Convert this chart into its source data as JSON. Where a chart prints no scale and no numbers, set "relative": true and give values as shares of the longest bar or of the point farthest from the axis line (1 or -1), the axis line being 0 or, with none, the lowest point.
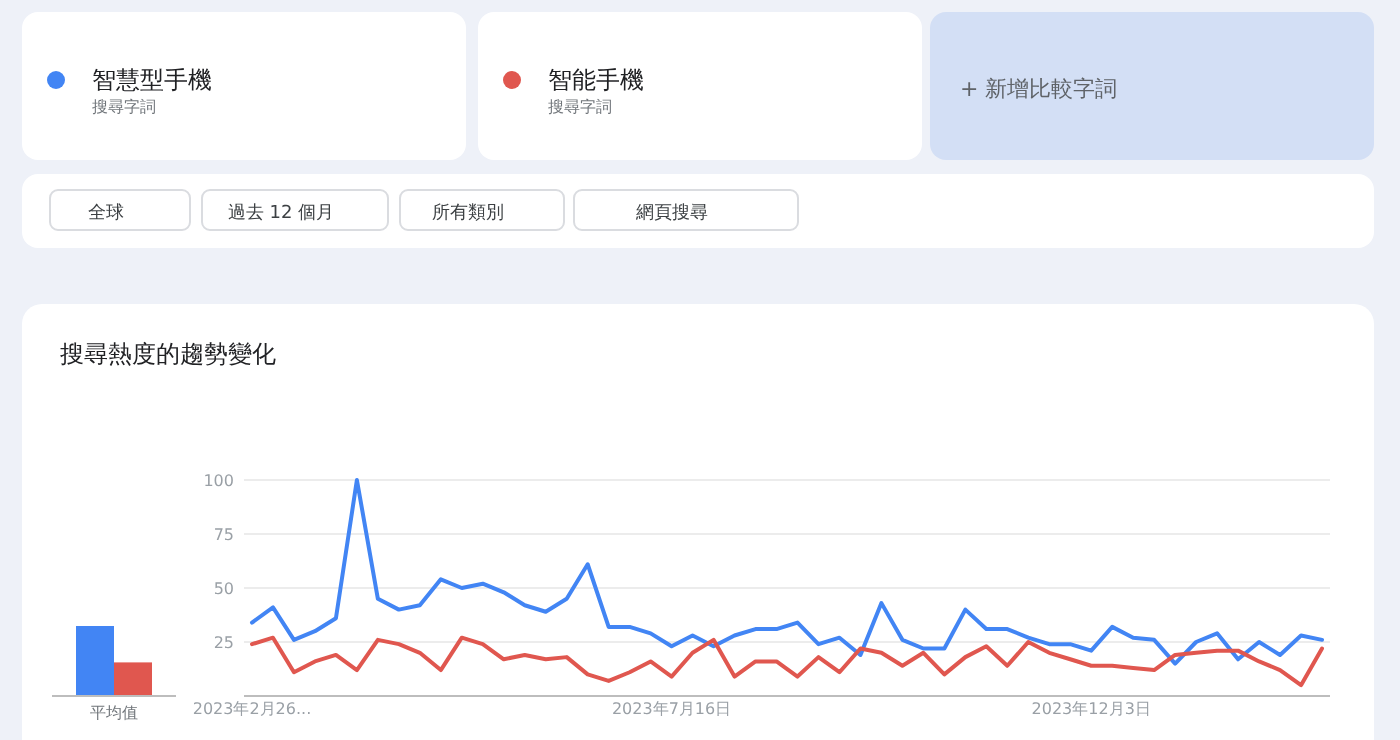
{
  "chart_data": [
    {
      "type": "bar",
      "relative": true,
      "categories": [
        "平均值"
      ],
      "series": [
        {
          "color": "#4285f4",
          "values": [
            1
          ]
        },
        {
          "color": "#e0574f",
          "values": [
            0.48
          ]
        }
      ]
    },
    {
      "type": "line",
      "title": "搜尋熱度的趨勢變化",
      "legend": "top",
      "grid": "y",
      "ylim": [
        0,
        100
      ],
      "yticks": [
        25,
        50,
        75,
        100
      ],
      "annotations": [
        "搜尋字詞",
        "搜尋字詞",
        "+ 新增比較字詞",
        "全球",
        "過去 12 個月",
        "所有類別",
        "網頁搜尋"
      ],
      "categories": [
        "2023年2月26...",
        null,
        null,
        null,
        null,
        null,
        null,
        null,
        null,
        null,
        null,
        null,
        null,
        null,
        null,
        null,
        null,
        null,
        null,
        null,
        "2023年7月16日",
        null,
        null,
        null,
        null,
        null,
        null,
        null,
        null,
        null,
        null,
        null,
        null,
        null,
        null,
        null,
        null,
        null,
        null,
        null,
        "2023年12月3日",
        null,
        null,
        null,
        null,
        null,
        null,
        null,
        null,
        null,
        null,
        null
      ],
      "series": [
        {
          "name": "智慧型手機",
          "color": "#4285f4",
          "values": [
            34,
            41,
            26,
            30,
            36,
            100,
            45,
            40,
            42,
            54,
            50,
            52,
            48,
            42,
            39,
            45,
            61,
            32,
            32,
            29,
            23,
            28,
            23,
            28,
            31,
            31,
            34,
            24,
            27,
            19,
            43,
            26,
            22,
            22,
            40,
            31,
            31,
            27,
            24,
            24,
            21,
            32,
            27,
            26,
            15,
            25,
            29,
            17,
            25,
            19,
            28,
            26
          ]
        },
        {
          "name": "智能手機",
          "color": "#e0574f",
          "values": [
            24,
            27,
            11,
            16,
            19,
            12,
            26,
            24,
            20,
            12,
            27,
            24,
            17,
            19,
            17,
            18,
            10,
            7,
            11,
            16,
            9,
            20,
            26,
            9,
            16,
            16,
            9,
            18,
            11,
            22,
            20,
            14,
            20,
            10,
            18,
            23,
            14,
            25,
            20,
            17,
            14,
            14,
            13,
            12,
            19,
            20,
            21,
            21,
            16,
            12,
            5,
            22
          ]
        }
      ]
    }
  ]
}
